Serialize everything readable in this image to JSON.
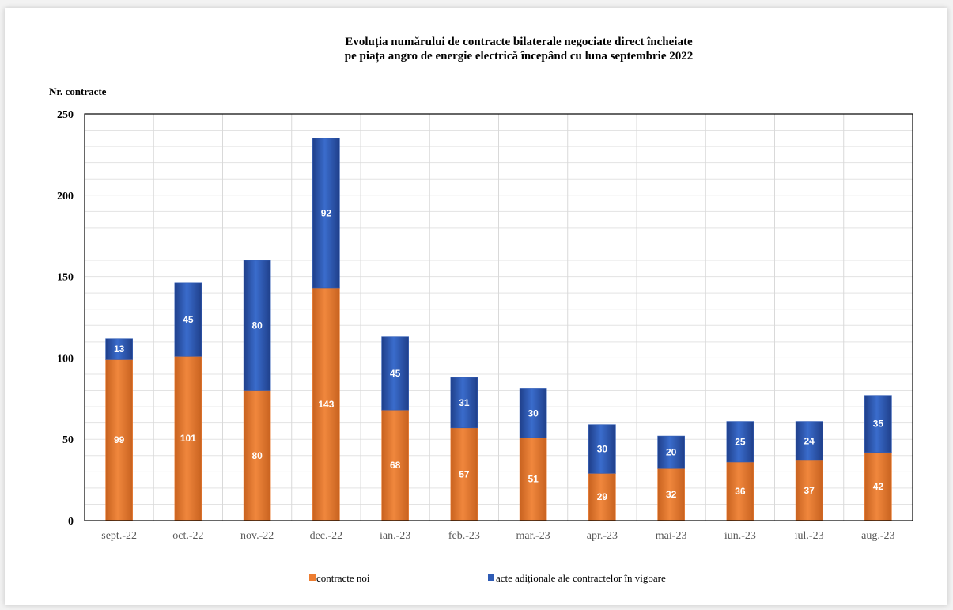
{
  "chart_data": {
    "type": "bar",
    "stacked": true,
    "title_line1": "Evoluția numărului de contracte bilaterale negociate direct încheiate",
    "title_line2": "pe piața angro de energie electrică începând cu luna septembrie 2022",
    "ylabel": "Nr. contracte",
    "xlabel": "",
    "ylim": [
      0,
      250
    ],
    "yticks": [
      0,
      50,
      100,
      150,
      200,
      250
    ],
    "grid": true,
    "legend_position": "bottom",
    "categories": [
      "sept.-22",
      "oct.-22",
      "nov.-22",
      "dec.-22",
      "ian.-23",
      "feb.-23",
      "mar.-23",
      "apr.-23",
      "mai-23",
      "iun.-23",
      "iul.-23",
      "aug.-23"
    ],
    "series": [
      {
        "name": "contracte noi",
        "color": "#ed7d31",
        "values": [
          99,
          101,
          80,
          143,
          68,
          57,
          51,
          29,
          32,
          36,
          37,
          42
        ]
      },
      {
        "name": "acte adiționale ale contractelor în vigoare",
        "color": "#2e5bb5",
        "values": [
          13,
          45,
          80,
          92,
          45,
          31,
          30,
          30,
          20,
          25,
          24,
          35
        ]
      }
    ]
  }
}
